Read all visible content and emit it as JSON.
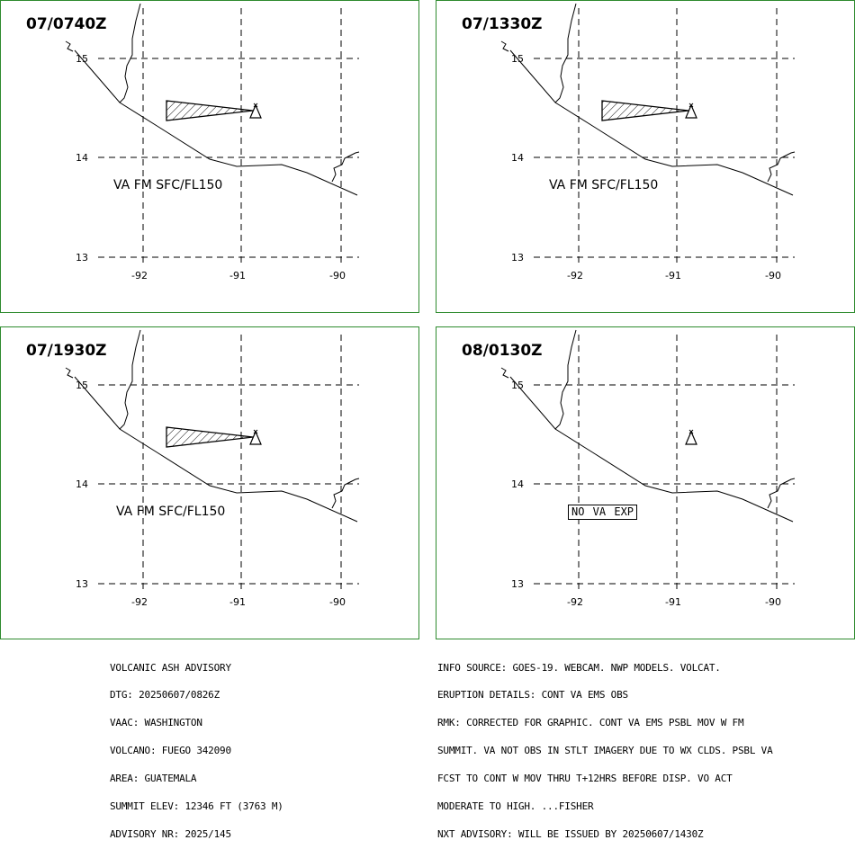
{
  "panels": [
    {
      "time": "07/0740Z",
      "label": "VA FM SFC/FL150",
      "label_boxed": false,
      "has_ash": true
    },
    {
      "time": "07/1330Z",
      "label": "VA FM SFC/FL150",
      "label_boxed": false,
      "has_ash": true
    },
    {
      "time": "07/1930Z",
      "label": "VA FM SFC/FL150",
      "label_boxed": false,
      "has_ash": true
    },
    {
      "time": "08/0130Z",
      "label": "NO VA EXP",
      "label_boxed": true,
      "has_ash": false
    }
  ],
  "map": {
    "lat_labels": [
      "15",
      "14",
      "13"
    ],
    "lon_labels": [
      "-92",
      "-91",
      "-90"
    ],
    "volcano_icon": "volcano-triangle-icon",
    "ash_fill": "hatched",
    "frame_color": "#2e8b2e"
  },
  "advisory_left": [
    "VOLCANIC ASH ADVISORY",
    "DTG: 20250607/0826Z",
    "VAAC: WASHINGTON",
    "VOLCANO: FUEGO 342090",
    "AREA: GUATEMALA",
    "SUMMIT ELEV: 12346 FT (3763 M)",
    "ADVISORY NR: 2025/145"
  ],
  "advisory_right": [
    "INFO SOURCE: GOES-19. WEBCAM. NWP MODELS. VOLCAT.",
    "ERUPTION DETAILS: CONT VA EMS OBS",
    "RMK: CORRECTED FOR GRAPHIC. CONT VA EMS PSBL MOV W FM",
    "SUMMIT. VA NOT OBS IN STLT IMAGERY DUE TO WX CLDS. PSBL VA",
    "FCST TO CONT W MOV THRU T+12HRS BEFORE DISP. VO ACT",
    "MODERATE TO HIGH. ...FISHER",
    "NXT ADVISORY: WILL BE ISSUED BY 20250607/1430Z"
  ]
}
